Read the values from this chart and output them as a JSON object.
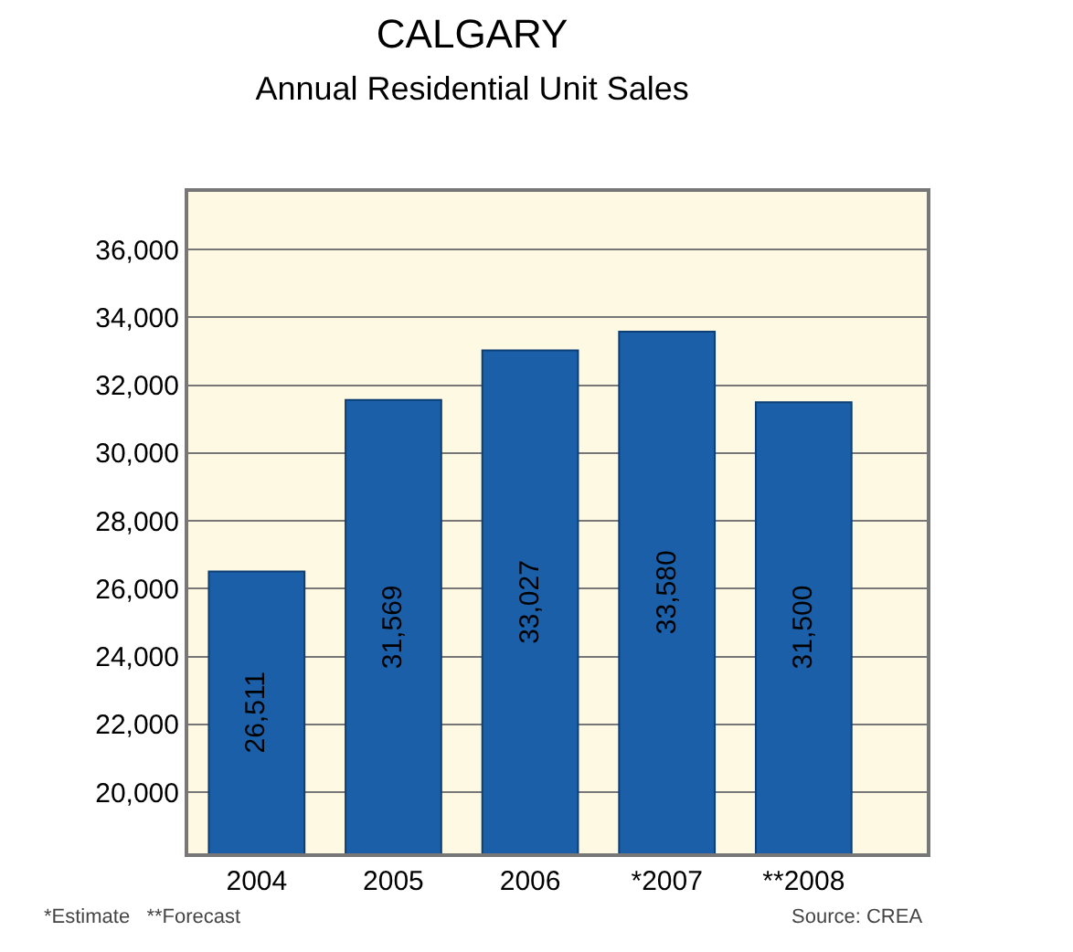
{
  "chart_data": {
    "type": "bar",
    "title": "CALGARY",
    "subtitle": "Annual Residential Unit Sales",
    "categories": [
      "2004",
      "2005",
      "2006",
      "*2007",
      "**2008"
    ],
    "values": [
      26511,
      31569,
      33027,
      33580,
      31500
    ],
    "color": "#1a5fa8",
    "value_labels": [
      "26,511",
      "31,569",
      "33,027",
      "33,580",
      "31,500"
    ],
    "ylim": [
      18200,
      37700
    ],
    "yticks": [
      {
        "value": 20000,
        "label": "20,000"
      },
      {
        "value": 22000,
        "label": "22,000"
      },
      {
        "value": 24000,
        "label": "24,000"
      },
      {
        "value": 26000,
        "label": "26,000"
      },
      {
        "value": 28000,
        "label": "28,000"
      },
      {
        "value": 30000,
        "label": "30,000"
      },
      {
        "value": 32000,
        "label": "32,000"
      },
      {
        "value": 34000,
        "label": "34,000"
      },
      {
        "value": 36000,
        "label": "36,000"
      }
    ],
    "grid": "y",
    "annotations": [
      "*Estimate   **Forecast",
      "Source: CREA"
    ]
  }
}
